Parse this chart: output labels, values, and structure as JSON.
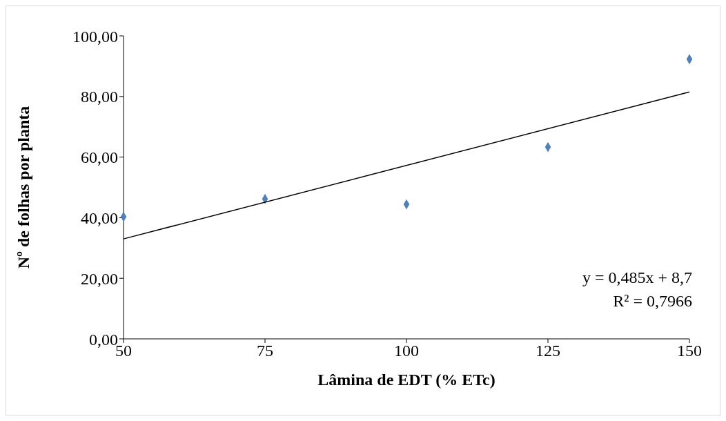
{
  "chart_data": {
    "type": "scatter",
    "xlabel": "Lâmina de EDT (% ETc)",
    "ylabel": "Nº de folhas por planta",
    "x": [
      50,
      75,
      100,
      125,
      150
    ],
    "series": [
      {
        "type": "scatter",
        "color": "#4f81bd",
        "marker": "diamond",
        "values": [
          40.3,
          46.2,
          44.4,
          63.3,
          92.3
        ]
      },
      {
        "type": "line",
        "color": "#000000",
        "marker": "none",
        "line_style": "solid",
        "x": [
          50,
          150
        ],
        "values": [
          33.0,
          81.5
        ]
      }
    ],
    "xlim": [
      50,
      150
    ],
    "xticks": [
      50,
      75,
      100,
      125,
      150
    ],
    "ylim": [
      0,
      100
    ],
    "yticks": [
      {
        "value": 0,
        "label": "0,00"
      },
      {
        "value": 20,
        "label": "20,00"
      },
      {
        "value": 40,
        "label": "40,00"
      },
      {
        "value": 60,
        "label": "60,00"
      },
      {
        "value": 80,
        "label": "80,00"
      },
      {
        "value": 100,
        "label": "100,00"
      }
    ],
    "grid": false,
    "annotations": [
      "y = 0,485x + 8,7",
      "R² = 0,7966"
    ]
  }
}
